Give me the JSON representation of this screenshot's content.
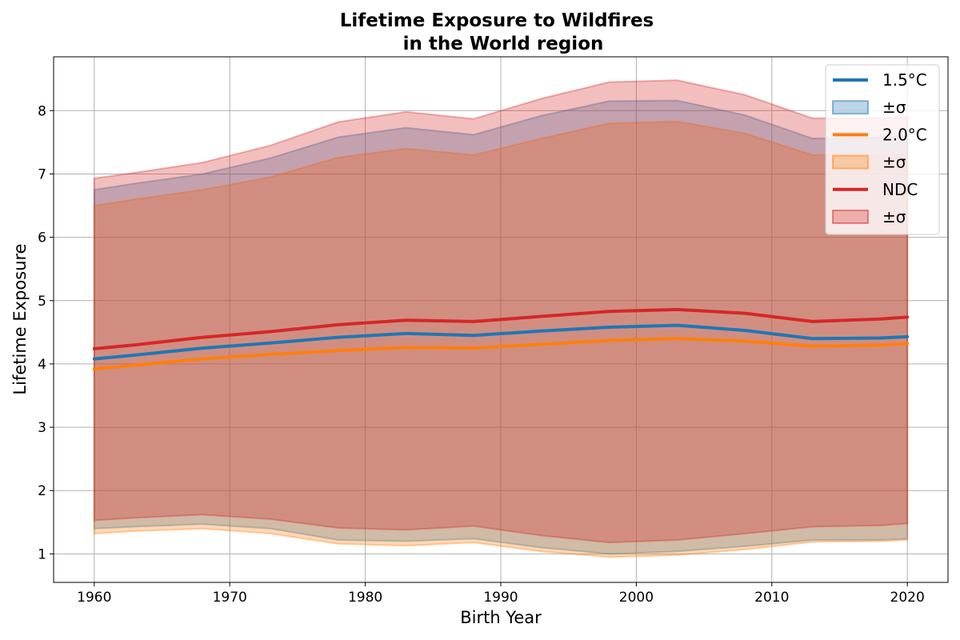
{
  "chart_data": {
    "type": "area",
    "title_line1": "Lifetime Exposure to Wildfires",
    "title_line2": "in the World region",
    "xlabel": "Birth Year",
    "ylabel": "Lifetime Exposure",
    "xlim": [
      1957,
      2023
    ],
    "ylim": [
      0.55,
      8.85
    ],
    "xticks": [
      1960,
      1970,
      1980,
      1990,
      2000,
      2010,
      2020
    ],
    "yticks": [
      1,
      2,
      3,
      4,
      5,
      6,
      7,
      8
    ],
    "grid": true,
    "legend_position": "top-right",
    "x": [
      1960,
      1963,
      1968,
      1973,
      1978,
      1983,
      1988,
      1993,
      1998,
      2003,
      2008,
      2013,
      2018,
      2020
    ],
    "series": [
      {
        "name": "1.5°C",
        "band_label": "±σ",
        "color": "#1f77b4",
        "mean": [
          4.08,
          4.14,
          4.25,
          4.33,
          4.42,
          4.48,
          4.45,
          4.52,
          4.58,
          4.61,
          4.53,
          4.4,
          4.41,
          4.43
        ],
        "upper": [
          6.75,
          6.85,
          7.0,
          7.25,
          7.58,
          7.73,
          7.62,
          7.92,
          8.15,
          8.16,
          7.93,
          7.56,
          7.58,
          7.6
        ],
        "lower": [
          1.4,
          1.43,
          1.47,
          1.4,
          1.22,
          1.2,
          1.24,
          1.1,
          1.0,
          1.04,
          1.12,
          1.22,
          1.22,
          1.24
        ]
      },
      {
        "name": "2.0°C",
        "band_label": "±σ",
        "color": "#ff7f0e",
        "mean": [
          3.92,
          3.98,
          4.08,
          4.15,
          4.21,
          4.26,
          4.25,
          4.31,
          4.37,
          4.4,
          4.36,
          4.28,
          4.3,
          4.32
        ],
        "upper": [
          6.5,
          6.6,
          6.75,
          6.95,
          7.26,
          7.4,
          7.3,
          7.56,
          7.8,
          7.83,
          7.64,
          7.3,
          7.3,
          7.32
        ],
        "lower": [
          1.32,
          1.36,
          1.4,
          1.32,
          1.16,
          1.13,
          1.18,
          1.04,
          0.95,
          0.98,
          1.07,
          1.19,
          1.2,
          1.22
        ]
      },
      {
        "name": "NDC",
        "band_label": "±σ",
        "color": "#d62728",
        "mean": [
          4.24,
          4.3,
          4.42,
          4.51,
          4.62,
          4.69,
          4.67,
          4.75,
          4.83,
          4.86,
          4.8,
          4.67,
          4.71,
          4.74
        ],
        "upper": [
          6.93,
          7.02,
          7.18,
          7.45,
          7.82,
          7.98,
          7.87,
          8.19,
          8.45,
          8.48,
          8.25,
          7.88,
          7.88,
          7.9
        ],
        "lower": [
          1.53,
          1.57,
          1.62,
          1.55,
          1.41,
          1.38,
          1.44,
          1.29,
          1.18,
          1.22,
          1.32,
          1.43,
          1.45,
          1.48
        ]
      }
    ]
  }
}
